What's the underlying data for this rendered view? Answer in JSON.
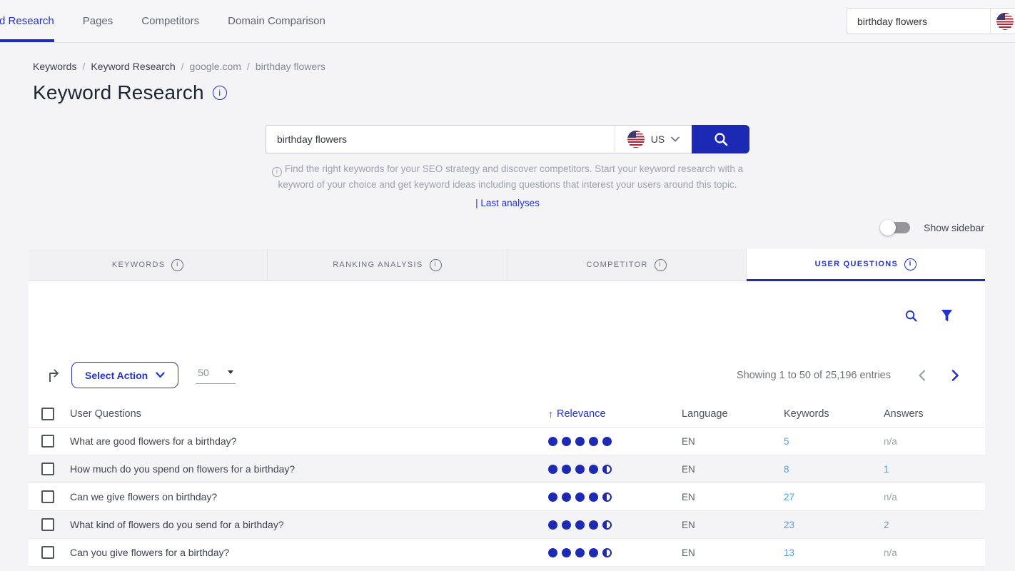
{
  "top_nav": {
    "items": [
      {
        "label": "Keyword Research",
        "active": true
      },
      {
        "label": "Pages",
        "active": false
      },
      {
        "label": "Competitors",
        "active": false
      },
      {
        "label": "Domain Comparison",
        "active": false
      }
    ],
    "search_value": "birthday flowers"
  },
  "breadcrumb": {
    "items": [
      "Keywords",
      "Keyword Research",
      "google.com",
      "birthday flowers"
    ],
    "separator": "/"
  },
  "page_title": "Keyword Research",
  "search_form": {
    "input_value": "birthday flowers",
    "country_code": "US",
    "description_line1": "Find the right keywords for your SEO strategy and discover competitors. Start your keyword research with a",
    "description_line2": "keyword of your choice and get keyword ideas including questions that interest your users around this topic.",
    "last_analyses_label": "| Last analyses"
  },
  "sidebar_toggle": {
    "label": "Show sidebar",
    "state": "off"
  },
  "tabs": [
    {
      "label": "KEYWORDS",
      "active": false
    },
    {
      "label": "RANKING ANALYSIS",
      "active": false
    },
    {
      "label": "COMPETITOR",
      "active": false
    },
    {
      "label": "USER QUESTIONS",
      "active": true
    }
  ],
  "toolbar": {
    "select_action_label": "Select Action",
    "page_size": "50",
    "showing_text": "Showing 1 to 50 of 25,196 entries"
  },
  "table": {
    "headers": {
      "questions": "User Questions",
      "relevance": "Relevance",
      "language": "Language",
      "keywords": "Keywords",
      "answers": "Answers"
    },
    "sort": {
      "column": "relevance",
      "indicator": "↑"
    },
    "rows": [
      {
        "question": "What are good flowers for a birthday?",
        "relevance": 5,
        "language": "EN",
        "keywords": "5",
        "answers": "n/a"
      },
      {
        "question": "How much do you spend on flowers for a birthday?",
        "relevance": 4.5,
        "language": "EN",
        "keywords": "8",
        "answers": "1"
      },
      {
        "question": "Can we give flowers on birthday?",
        "relevance": 4.5,
        "language": "EN",
        "keywords": "27",
        "answers": "n/a"
      },
      {
        "question": "What kind of flowers do you send for a birthday?",
        "relevance": 4.5,
        "language": "EN",
        "keywords": "23",
        "answers": "2"
      },
      {
        "question": "Can you give flowers for a birthday?",
        "relevance": 4.5,
        "language": "EN",
        "keywords": "13",
        "answers": "n/a"
      }
    ]
  },
  "colors": {
    "primary_blue": "#1f2ab4",
    "accent_blue": "#2433cf",
    "link_blue": "#4aa0e8",
    "flag_red": "#b22234",
    "flag_blue": "#3c3b6e"
  },
  "info_icon_glyph": "i"
}
